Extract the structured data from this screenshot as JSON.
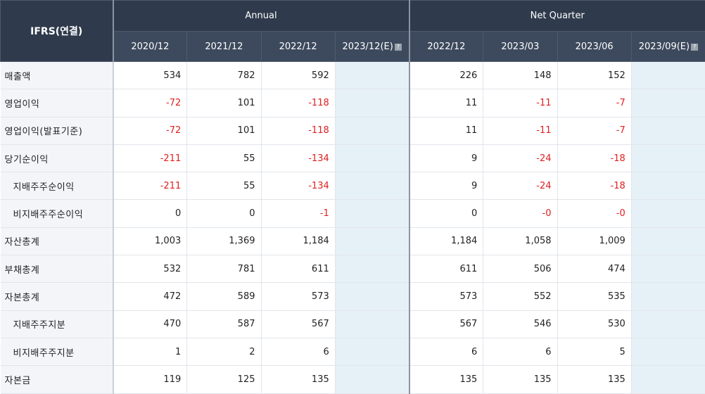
{
  "header": {
    "corner_label": "IFRS(연결)",
    "groups": [
      "Annual",
      "Net Quarter"
    ],
    "annual_periods": [
      "2020/12",
      "2021/12",
      "2022/12",
      "2023/12(E)"
    ],
    "quarter_periods": [
      "2022/12",
      "2023/03",
      "2023/06",
      "2023/09(E)"
    ],
    "estimate_marker": "?"
  },
  "rows": [
    {
      "label": "매출액",
      "indent": false,
      "annual": [
        "534",
        "782",
        "592",
        ""
      ],
      "quarter": [
        "226",
        "148",
        "152",
        ""
      ]
    },
    {
      "label": "영업이익",
      "indent": false,
      "annual": [
        "-72",
        "101",
        "-118",
        ""
      ],
      "quarter": [
        "11",
        "-11",
        "-7",
        ""
      ]
    },
    {
      "label": "영업이익(발표기준)",
      "indent": false,
      "annual": [
        "-72",
        "101",
        "-118",
        ""
      ],
      "quarter": [
        "11",
        "-11",
        "-7",
        ""
      ]
    },
    {
      "label": "당기순이익",
      "indent": false,
      "annual": [
        "-211",
        "55",
        "-134",
        ""
      ],
      "quarter": [
        "9",
        "-24",
        "-18",
        ""
      ]
    },
    {
      "label": "지배주주순이익",
      "indent": true,
      "annual": [
        "-211",
        "55",
        "-134",
        ""
      ],
      "quarter": [
        "9",
        "-24",
        "-18",
        ""
      ]
    },
    {
      "label": "비지배주주순이익",
      "indent": true,
      "annual": [
        "0",
        "0",
        "-1",
        ""
      ],
      "quarter": [
        "0",
        "-0",
        "-0",
        ""
      ]
    },
    {
      "label": "자산총계",
      "indent": false,
      "annual": [
        "1,003",
        "1,369",
        "1,184",
        ""
      ],
      "quarter": [
        "1,184",
        "1,058",
        "1,009",
        ""
      ]
    },
    {
      "label": "부채총계",
      "indent": false,
      "annual": [
        "532",
        "781",
        "611",
        ""
      ],
      "quarter": [
        "611",
        "506",
        "474",
        ""
      ]
    },
    {
      "label": "자본총계",
      "indent": false,
      "annual": [
        "472",
        "589",
        "573",
        ""
      ],
      "quarter": [
        "573",
        "552",
        "535",
        ""
      ]
    },
    {
      "label": "지배주주지분",
      "indent": true,
      "annual": [
        "470",
        "587",
        "567",
        ""
      ],
      "quarter": [
        "567",
        "546",
        "530",
        ""
      ]
    },
    {
      "label": "비지배주주지분",
      "indent": true,
      "annual": [
        "1",
        "2",
        "6",
        ""
      ],
      "quarter": [
        "6",
        "6",
        "5",
        ""
      ]
    },
    {
      "label": "자본금",
      "indent": false,
      "annual": [
        "119",
        "125",
        "135",
        ""
      ],
      "quarter": [
        "135",
        "135",
        "135",
        ""
      ]
    }
  ],
  "colors": {
    "header_bg": "#2f3b4c",
    "label_bg": "#f3f5f8",
    "estimate_bg": "#e6f1f7",
    "negative": "#e02020"
  }
}
